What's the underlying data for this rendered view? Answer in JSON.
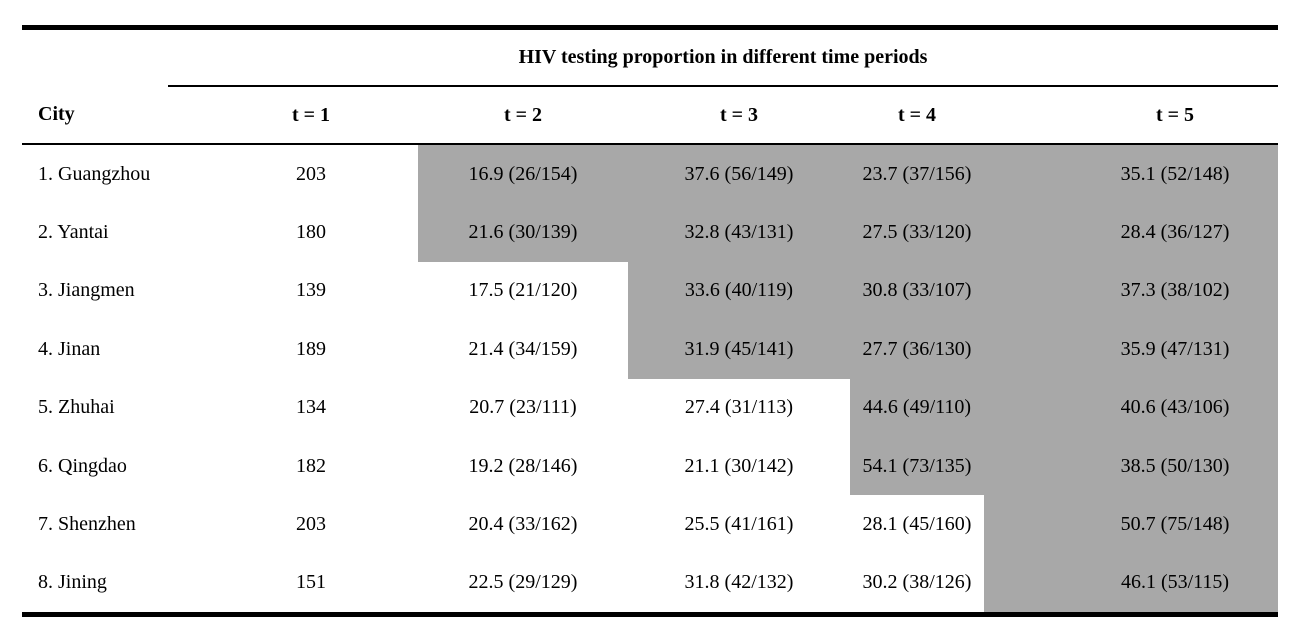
{
  "table": {
    "group_header": "HIV testing proportion in different time periods",
    "columns": [
      "City",
      "t = 1",
      "t = 2",
      "t = 3",
      "t = 4",
      "t = 5"
    ],
    "shading_color": "#a8a8a8",
    "rows": [
      {
        "city": "1. Guangzhou",
        "t1": "203",
        "t2": "16.9 (26/154)",
        "t3": "37.6 (56/149)",
        "t4": "23.7 (37/156)",
        "t5": "35.1 (52/148)",
        "shaded_from": 2
      },
      {
        "city": "2. Yantai",
        "t1": "180",
        "t2": "21.6 (30/139)",
        "t3": "32.8 (43/131)",
        "t4": "27.5 (33/120)",
        "t5": "28.4 (36/127)",
        "shaded_from": 2
      },
      {
        "city": "3. Jiangmen",
        "t1": "139",
        "t2": "17.5 (21/120)",
        "t3": "33.6 (40/119)",
        "t4": "30.8 (33/107)",
        "t5": "37.3 (38/102)",
        "shaded_from": 3
      },
      {
        "city": "4. Jinan",
        "t1": "189",
        "t2": "21.4 (34/159)",
        "t3": "31.9 (45/141)",
        "t4": "27.7 (36/130)",
        "t5": "35.9 (47/131)",
        "shaded_from": 3
      },
      {
        "city": "5. Zhuhai",
        "t1": "134",
        "t2": "20.7 (23/111)",
        "t3": "27.4 (31/113)",
        "t4": "44.6 (49/110)",
        "t5": "40.6 (43/106)",
        "shaded_from": 4
      },
      {
        "city": "6. Qingdao",
        "t1": "182",
        "t2": "19.2 (28/146)",
        "t3": "21.1 (30/142)",
        "t4": "54.1 (73/135)",
        "t5": "38.5 (50/130)",
        "shaded_from": 4
      },
      {
        "city": "7. Shenzhen",
        "t1": "203",
        "t2": "20.4 (33/162)",
        "t3": "25.5 (41/161)",
        "t4": "28.1 (45/160)",
        "t5": "50.7 (75/148)",
        "shaded_from": 5
      },
      {
        "city": "8. Jining",
        "t1": "151",
        "t2": "22.5 (29/129)",
        "t3": "31.8 (42/132)",
        "t4": "30.2 (38/126)",
        "t5": "46.1 (53/115)",
        "shaded_from": 5
      }
    ]
  }
}
